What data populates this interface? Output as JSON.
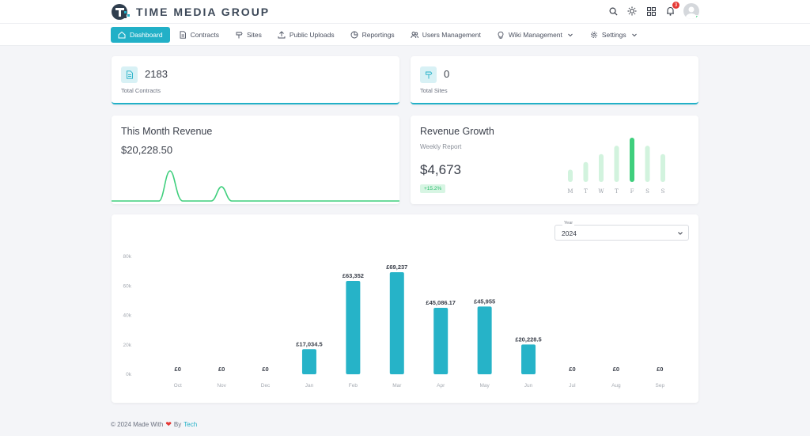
{
  "header": {
    "brand": "TIME MEDIA GROUP",
    "notification_count": "3"
  },
  "nav": {
    "items": [
      {
        "label": "Dashboard",
        "icon": "home-icon"
      },
      {
        "label": "Contracts",
        "icon": "document-icon"
      },
      {
        "label": "Sites",
        "icon": "signpost-icon"
      },
      {
        "label": "Public Uploads",
        "icon": "upload-icon"
      },
      {
        "label": "Reportings",
        "icon": "pie-chart-icon"
      },
      {
        "label": "Users Management",
        "icon": "users-icon"
      },
      {
        "label": "Wiki Management",
        "icon": "bulb-icon"
      },
      {
        "label": "Settings",
        "icon": "gear-icon"
      }
    ]
  },
  "stats": {
    "contracts": {
      "value": "2183",
      "label": "Total Contracts",
      "icon": "document-icon"
    },
    "sites": {
      "value": "0",
      "label": "Total Sites",
      "icon": "signpost-icon"
    }
  },
  "month_revenue": {
    "title": "This Month Revenue",
    "amount": "$20,228.50"
  },
  "growth": {
    "title": "Revenue Growth",
    "subtitle": "Weekly Report",
    "amount": "$4,673",
    "change": "+15.2%",
    "days": [
      "M",
      "T",
      "W",
      "T",
      "F",
      "S",
      "S"
    ],
    "levels": [
      0.28,
      0.45,
      0.63,
      0.82,
      1.0,
      0.82,
      0.63
    ],
    "highlight_index": 4,
    "bar_color": "#d2f3de",
    "highlight_color": "#3fcf7d"
  },
  "year_filter": {
    "label": "Year",
    "value": "2024"
  },
  "chart_data": {
    "type": "bar",
    "categories": [
      "Oct",
      "Nov",
      "Dec",
      "Jan",
      "Feb",
      "Mar",
      "Apr",
      "May",
      "Jun",
      "Jul",
      "Aug",
      "Sep"
    ],
    "values": [
      0,
      0,
      0,
      17034.5,
      63352,
      69237,
      45086.17,
      45955,
      20228.5,
      0,
      0,
      0
    ],
    "data_labels": [
      "£0",
      "£0",
      "£0",
      "£17,034.5",
      "£63,352",
      "£69,237",
      "£45,086.17",
      "£45,955",
      "£20,228.5",
      "£0",
      "£0",
      "£0"
    ],
    "yticks": [
      0,
      20000,
      40000,
      60000,
      80000
    ],
    "ytick_labels": [
      "0k",
      "20k",
      "40k",
      "60k",
      "80k"
    ],
    "ylim": [
      0,
      80000
    ],
    "color": "#26b3c8",
    "grid": false
  },
  "footer": {
    "text": "© 2024 Made With",
    "by": "By",
    "brand": "Tech"
  }
}
